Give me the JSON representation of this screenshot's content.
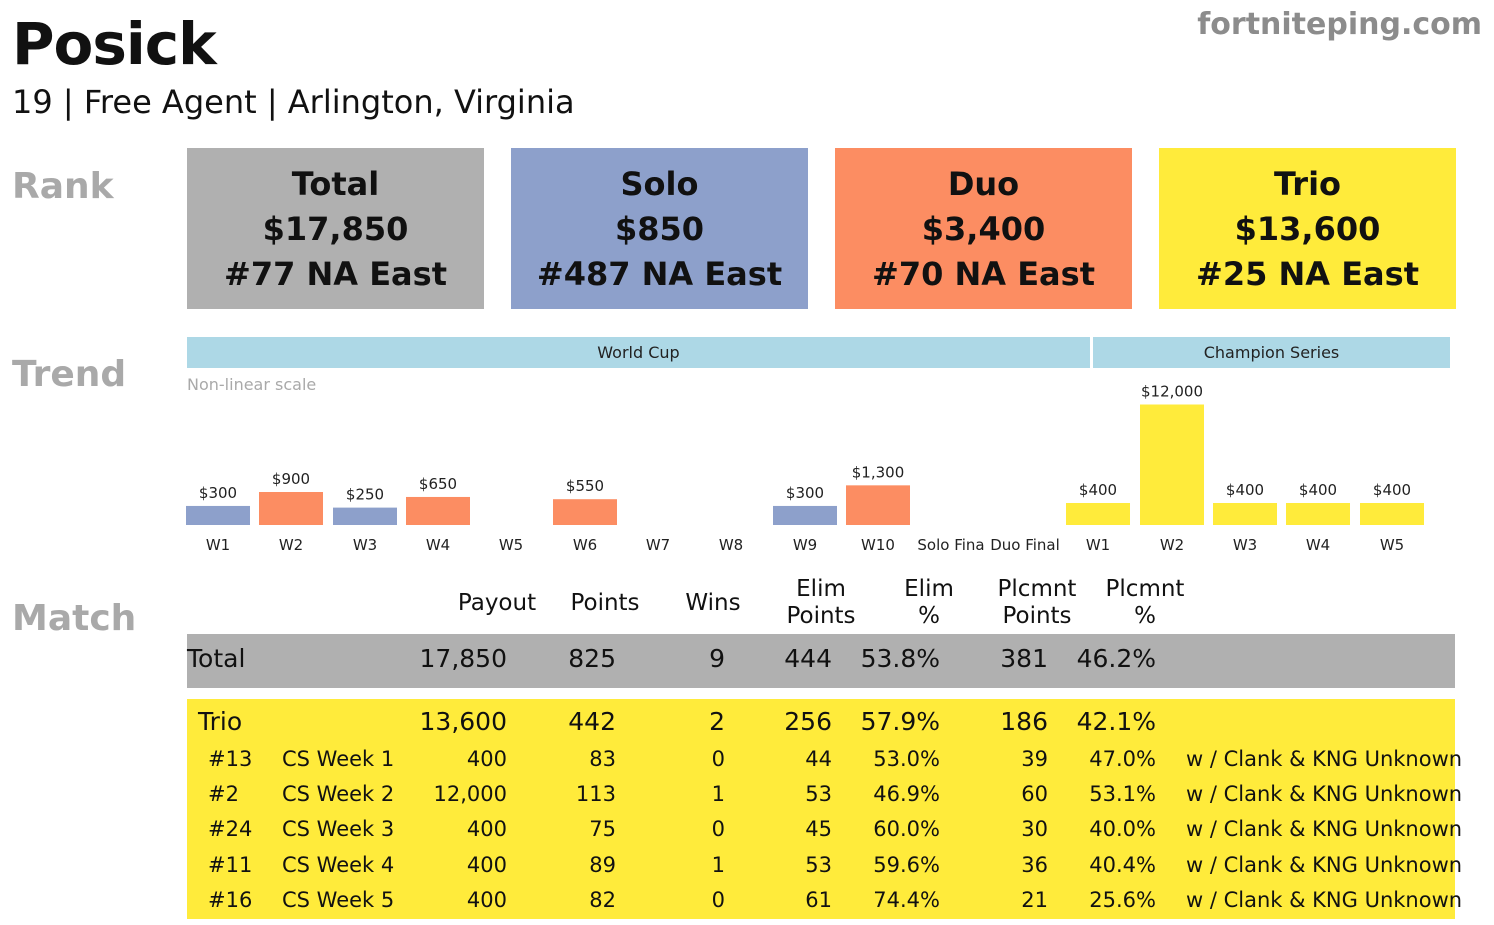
{
  "header": {
    "name": "Posick",
    "info": "19 | Free Agent | Arlington, Virginia",
    "site": "fortniteping.com"
  },
  "labels": {
    "rank": "Rank",
    "trend": "Trend",
    "match": "Match"
  },
  "rank": [
    {
      "title": "Total",
      "amount": "$17,850",
      "rank": "#77 NA East",
      "color": "#b0b0b0"
    },
    {
      "title": "Solo",
      "amount": "$850",
      "rank": "#487 NA East",
      "color": "#8da0cb"
    },
    {
      "title": "Duo",
      "amount": "$3,400",
      "rank": "#70 NA East",
      "color": "#fc8d62"
    },
    {
      "title": "Trio",
      "amount": "$13,600",
      "rank": "#25 NA East",
      "color": "#ffeb3b"
    }
  ],
  "trend": {
    "bands": [
      {
        "label": "World Cup"
      },
      {
        "label": "Champion Series"
      }
    ],
    "note": "Non-linear scale"
  },
  "colors": {
    "solo": "#8da0cb",
    "duo": "#fc8d62",
    "trio": "#ffeb3b"
  },
  "chart_data": {
    "type": "bar",
    "categories": [
      "W1",
      "W2",
      "W3",
      "W4",
      "W5",
      "W6",
      "W7",
      "W8",
      "W9",
      "W10",
      "Solo Fina",
      "Duo Final",
      "W1",
      "W2",
      "W3",
      "W4",
      "W5"
    ],
    "values": [
      300,
      900,
      250,
      650,
      null,
      550,
      null,
      null,
      300,
      1300,
      null,
      null,
      400,
      12000,
      400,
      400,
      400
    ],
    "value_labels": [
      "$300",
      "$900",
      "$250",
      "$650",
      "",
      "$550",
      "",
      "",
      "$300",
      "$1,300",
      "",
      "",
      "$400",
      "$12,000",
      "$400",
      "$400",
      "$400"
    ],
    "modes": [
      "solo",
      "duo",
      "solo",
      "duo",
      "",
      "duo",
      "",
      "",
      "solo",
      "duo",
      "",
      "",
      "trio",
      "trio",
      "trio",
      "trio",
      "trio"
    ],
    "scale": "non-linear"
  },
  "table": {
    "headers": [
      [
        "Payout"
      ],
      [
        "Points"
      ],
      [
        "Wins"
      ],
      [
        "Elim",
        "Points"
      ],
      [
        "Elim",
        "%"
      ],
      [
        "Plcmnt",
        "Points"
      ],
      [
        "Plcmnt",
        "%"
      ]
    ],
    "total": {
      "label": "Total",
      "payout": "17,850",
      "points": "825",
      "wins": "9",
      "elim_points": "444",
      "elim_pct": "53.8%",
      "plc_points": "381",
      "plc_pct": "46.2%"
    },
    "trio": {
      "label": "Trio",
      "payout": "13,600",
      "points": "442",
      "wins": "2",
      "elim_points": "256",
      "elim_pct": "57.9%",
      "plc_points": "186",
      "plc_pct": "42.1%"
    },
    "rows": [
      {
        "place": "#13",
        "event": "CS Week 1",
        "payout": "400",
        "points": "83",
        "wins": "0",
        "elim_points": "44",
        "elim_pct": "53.0%",
        "plc_points": "39",
        "plc_pct": "47.0%",
        "team": "w / Clank & KNG Unknown"
      },
      {
        "place": "#2",
        "event": "CS Week 2",
        "payout": "12,000",
        "points": "113",
        "wins": "1",
        "elim_points": "53",
        "elim_pct": "46.9%",
        "plc_points": "60",
        "plc_pct": "53.1%",
        "team": "w / Clank & KNG Unknown"
      },
      {
        "place": "#24",
        "event": "CS Week 3",
        "payout": "400",
        "points": "75",
        "wins": "0",
        "elim_points": "45",
        "elim_pct": "60.0%",
        "plc_points": "30",
        "plc_pct": "40.0%",
        "team": "w / Clank & KNG Unknown"
      },
      {
        "place": "#11",
        "event": "CS Week 4",
        "payout": "400",
        "points": "89",
        "wins": "1",
        "elim_points": "53",
        "elim_pct": "59.6%",
        "plc_points": "36",
        "plc_pct": "40.4%",
        "team": "w / Clank & KNG Unknown"
      },
      {
        "place": "#16",
        "event": "CS Week 5",
        "payout": "400",
        "points": "82",
        "wins": "0",
        "elim_points": "61",
        "elim_pct": "74.4%",
        "plc_points": "21",
        "plc_pct": "25.6%",
        "team": "w / Clank & KNG Unknown"
      }
    ]
  }
}
